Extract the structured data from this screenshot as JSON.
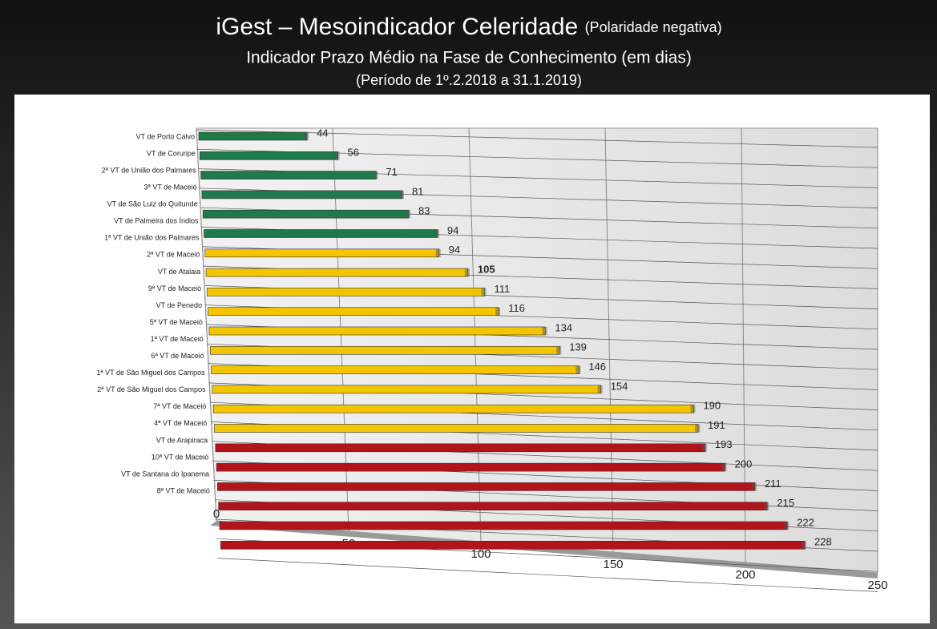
{
  "chart_data": {
    "type": "bar",
    "title": "iGest – Mesoindicador Celeridade",
    "title_note": "(Polaridade negativa)",
    "subtitle": "Indicador Prazo Médio na Fase de Conhecimento (em dias)",
    "period": "(Período de 1º.2.2018  a  31.1.2019)",
    "categories": [
      "VT de Porto Calvo",
      "VT de Coruripe",
      "2ª VT de União dos Palmares",
      "3ª VT de Maceió",
      "VT de São Luiz do Quitunde",
      "VT de Palmeira dos Índios",
      "1ª VT de União dos Palmares",
      "2ª VT de Maceió",
      "VT de Atalaia",
      "9ª VT de Maceió",
      "VT de Penedo",
      "5ª VT de Maceió",
      "1ª VT de Maceió",
      "6ª VT de Maceió",
      "1ª VT de São Miguel dos Campos",
      "2ª VT de São Miguel dos Campos",
      "7ª VT de Maceió",
      "4ª VT de Maceió",
      "VT de Arapiraca",
      "10ª VT de Maceió",
      "VT de Santana do Ipanema",
      "8ª VT de Maceió"
    ],
    "values": [
      44,
      56,
      71,
      81,
      83,
      94,
      94,
      105,
      111,
      116,
      134,
      139,
      146,
      154,
      190,
      191,
      193,
      200,
      211,
      215,
      222,
      228
    ],
    "colors": [
      "#1e7a4a",
      "#1e7a4a",
      "#1e7a4a",
      "#1e7a4a",
      "#1e7a4a",
      "#1e7a4a",
      "#f2c500",
      "#f2c500",
      "#f2c500",
      "#f2c500",
      "#f2c500",
      "#f2c500",
      "#f2c500",
      "#f2c500",
      "#f2c500",
      "#f2c500",
      "#b3141b",
      "#b3141b",
      "#b3141b",
      "#b3141b",
      "#b3141b",
      "#b3141b"
    ],
    "highlight": 7,
    "xlim": [
      0,
      250
    ],
    "xticks": [
      0,
      50,
      100,
      150,
      200,
      250
    ],
    "grid": true
  }
}
